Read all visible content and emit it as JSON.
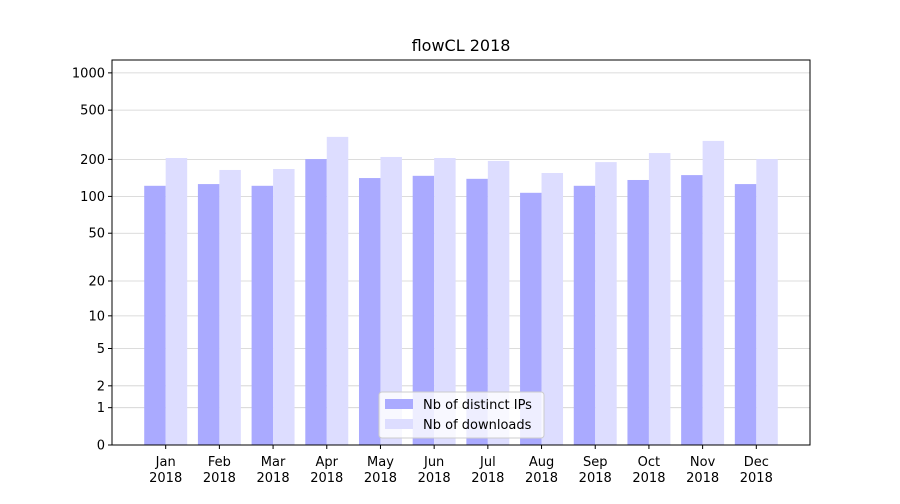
{
  "chart_data": {
    "type": "bar",
    "title": "flowCL 2018",
    "categories": [
      "Jan\n2018",
      "Feb\n2018",
      "Mar\n2018",
      "Apr\n2018",
      "May\n2018",
      "Jun\n2018",
      "Jul\n2018",
      "Aug\n2018",
      "Sep\n2018",
      "Oct\n2018",
      "Nov\n2018",
      "Dec\n2018"
    ],
    "series": [
      {
        "name": "Nb of distinct IPs",
        "color": "#aaaaff",
        "values": [
          122,
          126,
          122,
          201,
          141,
          147,
          139,
          107,
          122,
          136,
          149,
          126
        ]
      },
      {
        "name": "Nb of downloads",
        "color": "#ddddff",
        "values": [
          205,
          164,
          167,
          304,
          209,
          205,
          194,
          155,
          190,
          225,
          282,
          201
        ]
      }
    ],
    "yscale": "log1p",
    "ylim": [
      0,
      1270
    ],
    "yticks": [
      0,
      1,
      2,
      5,
      10,
      20,
      50,
      100,
      200,
      500,
      1000
    ],
    "grid": true,
    "legend": "lower center"
  }
}
